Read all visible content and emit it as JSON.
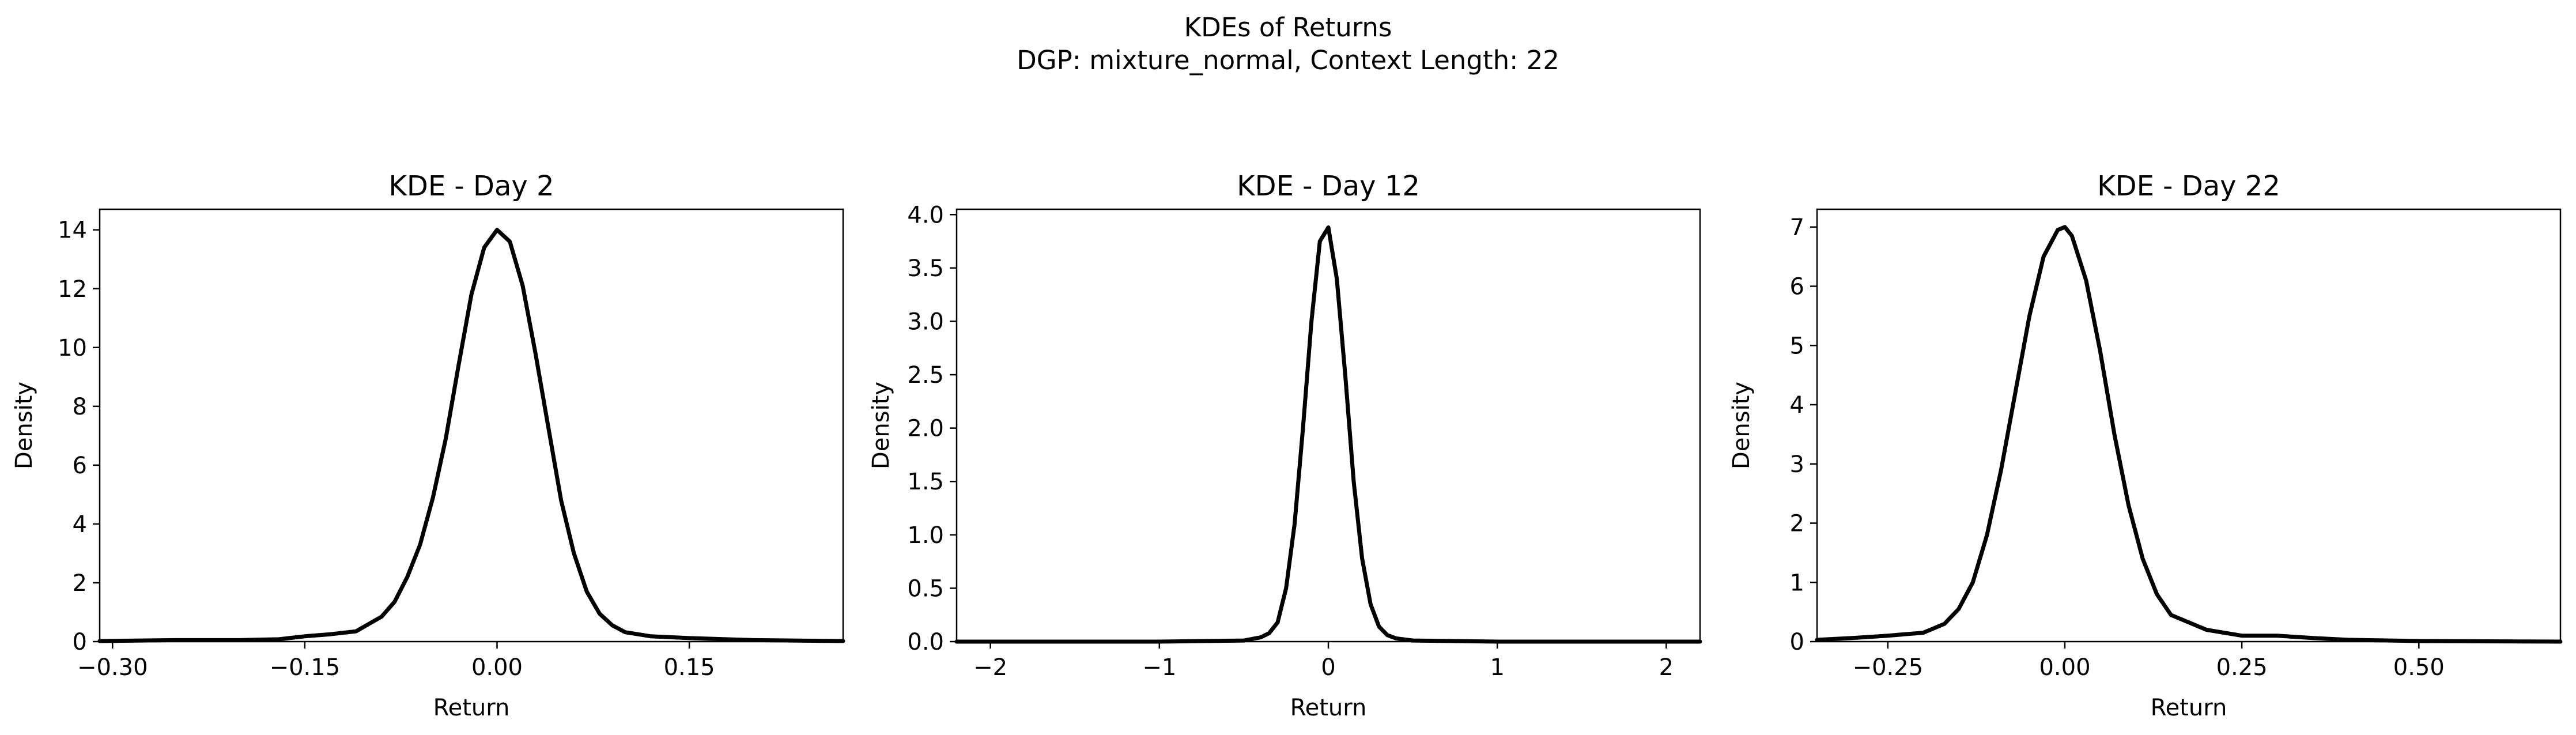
{
  "figure": {
    "title_line1": "KDEs of Returns",
    "title_line2": "DGP: mixture_normal, Context Length: 22"
  },
  "chart_data": [
    {
      "type": "line",
      "title": "KDE - Day 2",
      "xlabel": "Return",
      "ylabel": "Density",
      "xlim": [
        -0.31,
        0.27
      ],
      "ylim": [
        0,
        14.7
      ],
      "xticks": [
        -0.3,
        -0.15,
        0.0,
        0.15
      ],
      "xtick_labels": [
        "−0.30",
        "−0.15",
        "0.00",
        "0.15"
      ],
      "yticks": [
        0,
        2,
        4,
        6,
        8,
        10,
        12,
        14
      ],
      "ytick_labels": [
        "0",
        "2",
        "4",
        "6",
        "8",
        "10",
        "12",
        "14"
      ],
      "grid": false,
      "series": [
        {
          "color": "#000000",
          "x": [
            -0.31,
            -0.25,
            -0.2,
            -0.17,
            -0.15,
            -0.13,
            -0.11,
            -0.09,
            -0.08,
            -0.07,
            -0.06,
            -0.05,
            -0.04,
            -0.03,
            -0.02,
            -0.01,
            0.0,
            0.01,
            0.02,
            0.03,
            0.04,
            0.05,
            0.06,
            0.07,
            0.08,
            0.09,
            0.1,
            0.12,
            0.15,
            0.2,
            0.27
          ],
          "y": [
            0.02,
            0.05,
            0.05,
            0.08,
            0.18,
            0.25,
            0.35,
            0.85,
            1.35,
            2.2,
            3.3,
            4.9,
            6.9,
            9.4,
            11.8,
            13.4,
            14.0,
            13.6,
            12.1,
            9.8,
            7.3,
            4.8,
            3.0,
            1.7,
            0.95,
            0.55,
            0.32,
            0.18,
            0.12,
            0.05,
            0.02
          ]
        }
      ]
    },
    {
      "type": "line",
      "title": "KDE - Day 12",
      "xlabel": "Return",
      "ylabel": "Density",
      "xlim": [
        -2.2,
        2.2
      ],
      "ylim": [
        0,
        4.05
      ],
      "xticks": [
        -2,
        -1,
        0,
        1,
        2
      ],
      "xtick_labels": [
        "−2",
        "−1",
        "0",
        "1",
        "2"
      ],
      "yticks": [
        0.0,
        0.5,
        1.0,
        1.5,
        2.0,
        2.5,
        3.0,
        3.5,
        4.0
      ],
      "ytick_labels": [
        "0.0",
        "0.5",
        "1.0",
        "1.5",
        "2.0",
        "2.5",
        "3.0",
        "3.5",
        "4.0"
      ],
      "grid": false,
      "series": [
        {
          "color": "#000000",
          "x": [
            -2.2,
            -1.0,
            -0.5,
            -0.4,
            -0.35,
            -0.3,
            -0.25,
            -0.2,
            -0.15,
            -0.1,
            -0.05,
            0.0,
            0.05,
            0.1,
            0.15,
            0.2,
            0.25,
            0.3,
            0.35,
            0.4,
            0.5,
            1.0,
            2.2
          ],
          "y": [
            0.0,
            0.0,
            0.01,
            0.04,
            0.08,
            0.18,
            0.5,
            1.1,
            2.0,
            3.0,
            3.75,
            3.88,
            3.4,
            2.5,
            1.5,
            0.78,
            0.35,
            0.14,
            0.06,
            0.03,
            0.01,
            0.0,
            0.0
          ]
        }
      ]
    },
    {
      "type": "line",
      "title": "KDE - Day 22",
      "xlabel": "Return",
      "ylabel": "Density",
      "xlim": [
        -0.35,
        0.7
      ],
      "ylim": [
        0,
        7.3
      ],
      "xticks": [
        -0.25,
        0.0,
        0.25,
        0.5
      ],
      "xtick_labels": [
        "−0.25",
        "0.00",
        "0.25",
        "0.50"
      ],
      "yticks": [
        0,
        1,
        2,
        3,
        4,
        5,
        6,
        7
      ],
      "ytick_labels": [
        "0",
        "1",
        "2",
        "3",
        "4",
        "5",
        "6",
        "7"
      ],
      "grid": false,
      "series": [
        {
          "color": "#000000",
          "x": [
            -0.35,
            -0.3,
            -0.25,
            -0.2,
            -0.17,
            -0.15,
            -0.13,
            -0.11,
            -0.09,
            -0.07,
            -0.05,
            -0.03,
            -0.01,
            0.0,
            0.01,
            0.03,
            0.05,
            0.07,
            0.09,
            0.11,
            0.13,
            0.15,
            0.2,
            0.25,
            0.3,
            0.35,
            0.4,
            0.5,
            0.7
          ],
          "y": [
            0.03,
            0.06,
            0.1,
            0.15,
            0.3,
            0.55,
            1.0,
            1.8,
            2.9,
            4.2,
            5.5,
            6.5,
            6.95,
            7.0,
            6.85,
            6.1,
            4.9,
            3.5,
            2.3,
            1.4,
            0.8,
            0.45,
            0.2,
            0.1,
            0.1,
            0.06,
            0.03,
            0.01,
            0.0
          ]
        }
      ]
    }
  ]
}
